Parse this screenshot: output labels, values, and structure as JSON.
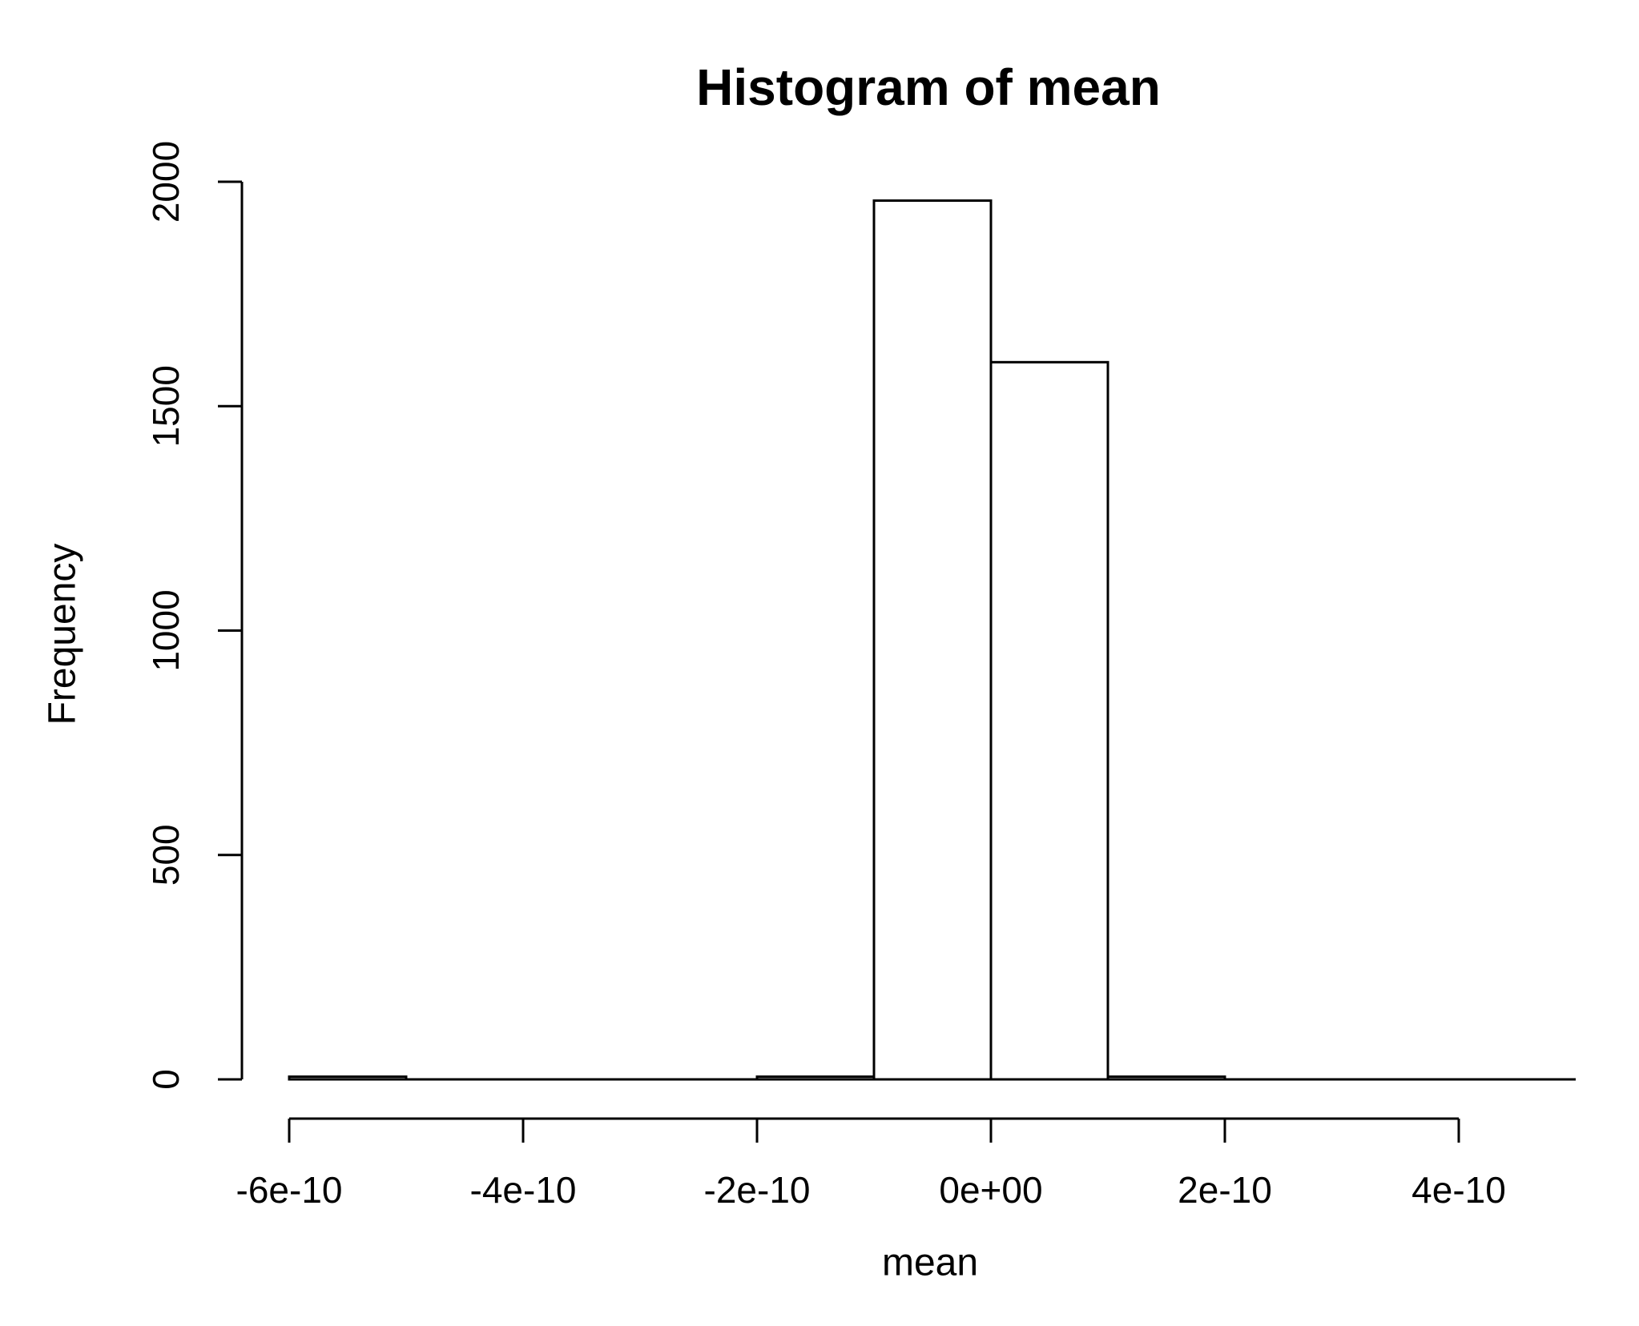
{
  "figure": {
    "background_color": "#ffffff",
    "foreground_color": "#000000"
  },
  "chart_data": {
    "type": "bar",
    "subtype": "histogram",
    "title": "Histogram of mean",
    "xlabel": "mean",
    "ylabel": "Frequency",
    "grid": false,
    "legend": false,
    "bar_fill": "#ffffff",
    "bar_stroke": "#000000",
    "axis_color": "#000000",
    "xlim": [
      -6e-10,
      5e-10
    ],
    "ylim": [
      0,
      2000
    ],
    "bin_width": 1e-10,
    "bins": [
      {
        "from": -6e-10,
        "to": -5e-10,
        "count": 6
      },
      {
        "from": -5e-10,
        "to": -4e-10,
        "count": 0
      },
      {
        "from": -4e-10,
        "to": -3e-10,
        "count": 0
      },
      {
        "from": -3e-10,
        "to": -2e-10,
        "count": 0
      },
      {
        "from": -2e-10,
        "to": -1e-10,
        "count": 6
      },
      {
        "from": -1e-10,
        "to": 0,
        "count": 1958
      },
      {
        "from": 0,
        "to": 1e-10,
        "count": 1598
      },
      {
        "from": 1e-10,
        "to": 2e-10,
        "count": 6
      },
      {
        "from": 2e-10,
        "to": 3e-10,
        "count": 0
      },
      {
        "from": 3e-10,
        "to": 4e-10,
        "count": 0
      },
      {
        "from": 4e-10,
        "to": 5e-10,
        "count": 0
      }
    ],
    "x_ticks": [
      {
        "value": -6e-10,
        "label": "-6e-10"
      },
      {
        "value": -4e-10,
        "label": "-4e-10"
      },
      {
        "value": -2e-10,
        "label": "-2e-10"
      },
      {
        "value": 0,
        "label": "0e+00"
      },
      {
        "value": 2e-10,
        "label": "2e-10"
      },
      {
        "value": 4e-10,
        "label": "4e-10"
      }
    ],
    "y_ticks": [
      {
        "value": 0,
        "label": "0"
      },
      {
        "value": 500,
        "label": "500"
      },
      {
        "value": 1000,
        "label": "1000"
      },
      {
        "value": 1500,
        "label": "1500"
      },
      {
        "value": 2000,
        "label": "2000"
      }
    ]
  }
}
